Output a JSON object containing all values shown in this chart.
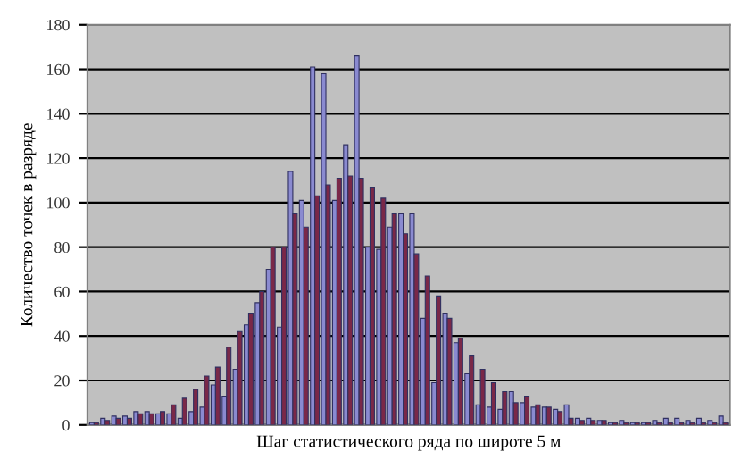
{
  "chart_data": {
    "type": "bar",
    "xlabel": "Шаг статистического ряда по широте 5 м",
    "ylabel": "Количество точек в разряде",
    "categories": [
      null,
      null,
      null,
      null,
      null,
      null,
      null,
      null,
      null,
      null,
      null,
      null,
      null,
      null,
      null,
      null,
      null,
      null,
      null,
      null,
      null,
      null,
      null,
      null,
      null,
      null,
      null,
      null,
      null,
      null,
      null,
      null,
      null,
      null,
      null,
      null,
      null,
      null,
      null,
      null,
      null,
      null,
      null,
      null,
      null,
      null,
      null,
      null,
      null,
      null,
      null,
      null,
      null,
      null,
      null,
      null,
      null,
      null
    ],
    "series": [
      {
        "color": "#8a8ad0",
        "values": [
          1,
          3,
          4,
          4,
          6,
          6,
          5,
          5,
          3,
          6,
          8,
          18,
          13,
          25,
          45,
          55,
          70,
          44,
          114,
          101,
          161,
          158,
          101,
          126,
          166,
          80,
          79,
          89,
          95,
          95,
          48,
          19,
          50,
          37,
          23,
          9,
          8,
          7,
          15,
          10,
          8,
          8,
          7,
          9,
          3,
          3,
          2,
          1,
          2,
          1,
          1,
          2,
          3,
          3,
          2,
          3,
          2,
          4
        ]
      },
      {
        "color": "#7a2848",
        "values": [
          1,
          2,
          3,
          3,
          5,
          5,
          6,
          9,
          12,
          16,
          22,
          26,
          35,
          42,
          50,
          60,
          80,
          80,
          95,
          89,
          103,
          108,
          111,
          112,
          111,
          107,
          102,
          95,
          86,
          77,
          67,
          58,
          48,
          39,
          31,
          25,
          19,
          15,
          10,
          13,
          9,
          8,
          6,
          3,
          2,
          2,
          2,
          1,
          1,
          1,
          1,
          1,
          1,
          1,
          1,
          1,
          1,
          1
        ]
      }
    ],
    "ylim": [
      0,
      180
    ],
    "yticks": [
      0,
      20,
      40,
      60,
      80,
      100,
      120,
      140,
      160,
      180
    ],
    "grid": "y",
    "tick_labels": "y"
  }
}
